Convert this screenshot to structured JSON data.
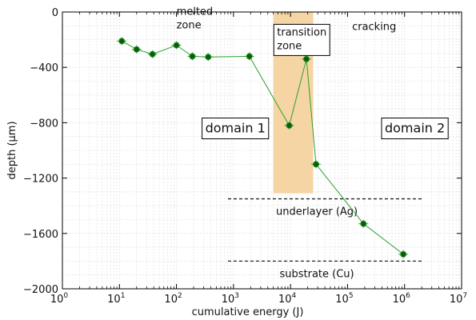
{
  "chart_data": {
    "type": "scatter",
    "xscale": "log",
    "xlim": [
      1,
      10000000
    ],
    "ylim": [
      -2000,
      0
    ],
    "xlabel": "cumulative energy (J)",
    "ylabel": "depth (μm)",
    "grid": true,
    "x_ticks": [
      1,
      10,
      100,
      1000,
      10000,
      100000,
      1000000,
      10000000
    ],
    "x_tick_labels": [
      [
        "10",
        "0"
      ],
      [
        "10",
        "1"
      ],
      [
        "10",
        "2"
      ],
      [
        "10",
        "3"
      ],
      [
        "10",
        "4"
      ],
      [
        "10",
        "5"
      ],
      [
        "10",
        "6"
      ],
      [
        "10",
        "7"
      ]
    ],
    "y_ticks": [
      0,
      -400,
      -800,
      -1200,
      -1600,
      -2000
    ],
    "y_tick_labels": [
      "0",
      "−400",
      "−800",
      "−1200",
      "−1600",
      "−2000"
    ],
    "series": [
      {
        "color": "#2ca02c",
        "marker_color": "#0b5e0b",
        "x": [
          11,
          20,
          38,
          100,
          190,
          360,
          1900,
          9500,
          19000,
          28000,
          190000,
          950000
        ],
        "y": [
          -210,
          -270,
          -305,
          -240,
          -320,
          -325,
          -320,
          -820,
          -340,
          -1100,
          -1530,
          -1750
        ]
      }
    ],
    "shaded_region": {
      "x": [
        5000,
        25000
      ],
      "y": [
        -1310,
        0
      ],
      "color": "#f5d5a3"
    },
    "reference_lines": [
      {
        "y": -1350,
        "x": [
          800,
          2000000
        ],
        "label": "underlayer (Ag)"
      },
      {
        "y": -1800,
        "x": [
          800,
          2000000
        ],
        "label": "substrate (Cu)"
      }
    ],
    "annotations": [
      {
        "id": "melted",
        "lines": [
          "melted",
          "zone"
        ],
        "x": 100,
        "y": -20
      },
      {
        "id": "transition",
        "lines": [
          "transition",
          "zone"
        ],
        "x": 5800,
        "y": -170,
        "boxed": true
      },
      {
        "id": "cracking",
        "lines": [
          "cracking"
        ],
        "x": 120000,
        "y": -130
      },
      {
        "id": "domain1",
        "lines": [
          "domain 1"
        ],
        "x": 320,
        "y": -870,
        "boxed": true
      },
      {
        "id": "domain2",
        "lines": [
          "domain 2"
        ],
        "x": 450000,
        "y": -870,
        "boxed": true
      }
    ]
  }
}
